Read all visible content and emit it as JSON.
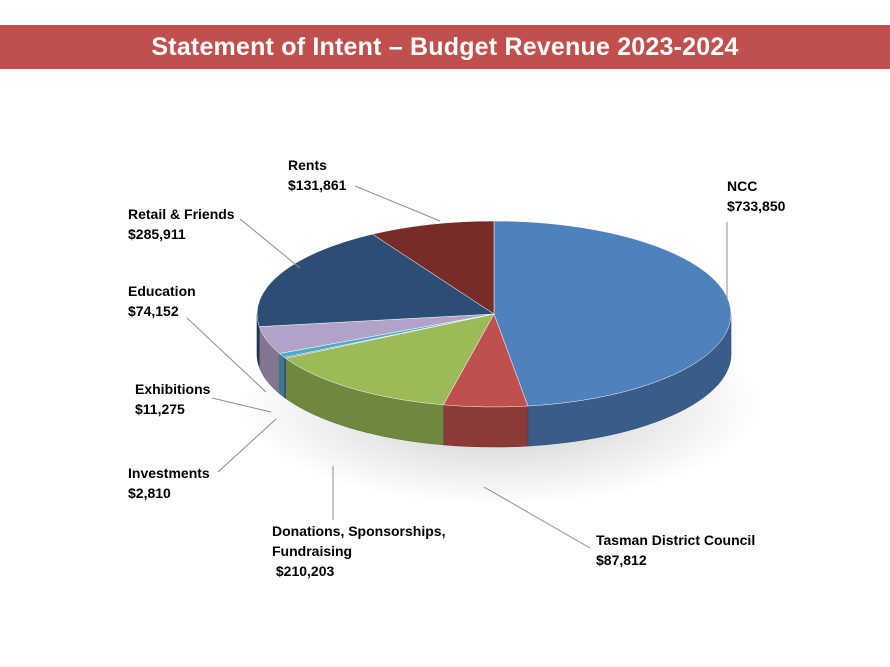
{
  "title": "Statement of Intent – Budget Revenue 2023-2024",
  "chart_data": {
    "type": "pie",
    "title": "Statement of Intent – Budget Revenue 2023-2024",
    "three_d": true,
    "legend": "none",
    "slices": [
      {
        "key": "ncc",
        "label": "NCC",
        "value": 733850,
        "display": "$733,850",
        "color": "#4f81bd"
      },
      {
        "key": "tdc",
        "label": "Tasman District Council",
        "value": 87812,
        "display": "$87,812",
        "color": "#c0504d"
      },
      {
        "key": "donations",
        "label_lines": [
          "Donations, Sponsorships,",
          "Fundraising"
        ],
        "value": 210203,
        "display": " $210,203",
        "color": "#9bbb59"
      },
      {
        "key": "investments",
        "label": "Investments",
        "value": 2810,
        "display": "$2,810",
        "color": "#8064a2"
      },
      {
        "key": "exhibitions",
        "label": "Exhibitions",
        "value": 11275,
        "display": "$11,275",
        "color": "#4bacc6"
      },
      {
        "key": "education",
        "label": "Education",
        "value": 74152,
        "display": "$74,152",
        "color": "#b3a2c7"
      },
      {
        "key": "retail",
        "label": "Retail & Friends",
        "value": 285911,
        "display": "$285,911",
        "color": "#2c4d75"
      },
      {
        "key": "rents",
        "label": "Rents",
        "value": 131861,
        "display": "$131,861",
        "color": "#772c2a"
      }
    ]
  }
}
